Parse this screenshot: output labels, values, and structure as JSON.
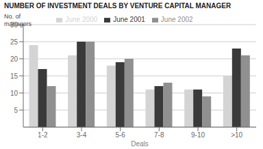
{
  "chart_data": {
    "type": "bar",
    "title": "NUMBER OF INVESTMENT DEALS BY VENTURE CAPITAL MANAGER",
    "xlabel": "Deals",
    "ylabel": "No. of\nmanagers",
    "categories": [
      "1-2",
      "3-4",
      "5-6",
      "7-8",
      "9-10",
      ">10"
    ],
    "series": [
      {
        "name": "June 2000",
        "color": "#d4d4d4",
        "values": [
          24,
          21,
          18,
          11,
          11,
          15
        ]
      },
      {
        "name": "June 2001",
        "color": "#3a3a3a",
        "values": [
          17,
          25,
          19,
          12,
          11,
          23
        ]
      },
      {
        "name": "June 2002",
        "color": "#909090",
        "values": [
          12,
          25,
          20,
          13,
          9,
          21
        ]
      }
    ],
    "ylim": [
      0,
      30
    ],
    "yticks": [
      5,
      10,
      15,
      20,
      25,
      30
    ],
    "grid": true,
    "legend": "top"
  }
}
